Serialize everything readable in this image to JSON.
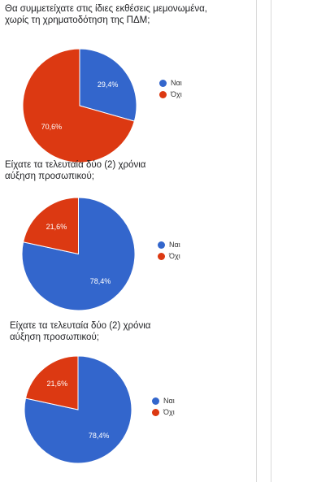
{
  "chart_data": [
    {
      "type": "pie",
      "title": "Θα συμμετείχατε στις ίδιες εκθέσεις μεμονωμένα,\nχωρίς τη χρηματοδότηση της ΠΔΜ;",
      "categories": [
        "Ναι",
        "Όχι"
      ],
      "values": [
        29.4,
        70.6
      ],
      "labels": [
        "29,4%",
        "70,6%"
      ],
      "colors": [
        "#3366cc",
        "#dc3912"
      ],
      "legend_position": "right"
    },
    {
      "type": "pie",
      "title": "Είχατε τα τελευταία δύο (2) χρόνια\nαύξηση προσωπικού;",
      "categories": [
        "Ναι",
        "Όχι"
      ],
      "values": [
        78.4,
        21.6
      ],
      "labels": [
        "78,4%",
        "21,6%"
      ],
      "colors": [
        "#3366cc",
        "#dc3912"
      ],
      "legend_position": "right"
    },
    {
      "type": "pie",
      "title": "Είχατε τα τελευταία δύο (2) χρόνια\nαύξηση προσωπικού;",
      "categories": [
        "Ναι",
        "Όχι"
      ],
      "values": [
        78.4,
        21.6
      ],
      "labels": [
        "78,4%",
        "21,6%"
      ],
      "colors": [
        "#3366cc",
        "#dc3912"
      ],
      "legend_position": "right"
    }
  ]
}
